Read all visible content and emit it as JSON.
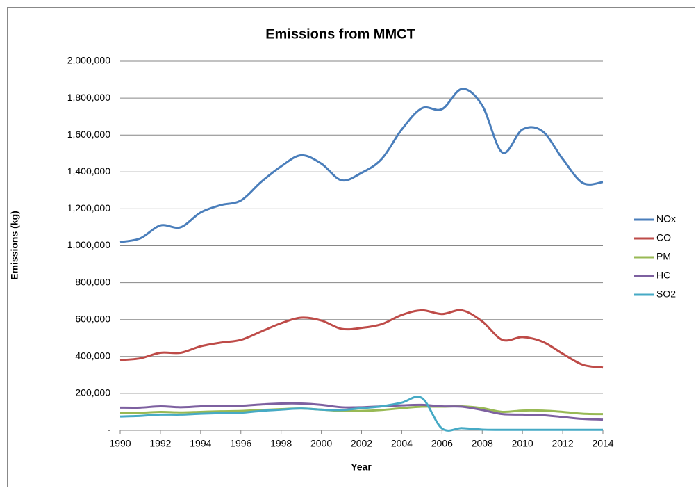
{
  "chart_data": {
    "type": "line",
    "title": "Emissions from MMCT",
    "x_label": "Year",
    "y_label": "Emissions (kg)",
    "x": [
      1990,
      1991,
      1992,
      1993,
      1994,
      1995,
      1996,
      1997,
      1998,
      1999,
      2000,
      2001,
      2002,
      2003,
      2004,
      2005,
      2006,
      2007,
      2008,
      2009,
      2010,
      2011,
      2012,
      2013,
      2014
    ],
    "series": [
      {
        "name": "NOx",
        "color": "#4a7ebb",
        "values": [
          1020000,
          1040000,
          1110000,
          1100000,
          1180000,
          1220000,
          1245000,
          1345000,
          1430000,
          1490000,
          1445000,
          1355000,
          1395000,
          1470000,
          1630000,
          1745000,
          1740000,
          1850000,
          1760000,
          1505000,
          1630000,
          1620000,
          1470000,
          1340000,
          1345000
        ]
      },
      {
        "name": "CO",
        "color": "#be4b48",
        "values": [
          380000,
          390000,
          420000,
          420000,
          455000,
          475000,
          490000,
          535000,
          580000,
          610000,
          595000,
          550000,
          555000,
          575000,
          625000,
          650000,
          630000,
          650000,
          590000,
          490000,
          505000,
          480000,
          415000,
          355000,
          340000
        ]
      },
      {
        "name": "PM",
        "color": "#98b954",
        "values": [
          95000,
          95000,
          100000,
          97000,
          100000,
          103000,
          105000,
          110000,
          115000,
          118000,
          112000,
          105000,
          105000,
          110000,
          120000,
          128000,
          128000,
          130000,
          120000,
          100000,
          107000,
          107000,
          100000,
          90000,
          88000
        ]
      },
      {
        "name": "HC",
        "color": "#7d60a0",
        "values": [
          123000,
          123000,
          130000,
          125000,
          130000,
          133000,
          133000,
          140000,
          145000,
          145000,
          138000,
          125000,
          125000,
          130000,
          135000,
          138000,
          130000,
          128000,
          110000,
          88000,
          85000,
          82000,
          72000,
          62000,
          58000
        ]
      },
      {
        "name": "SO2",
        "color": "#46aac5",
        "values": [
          75000,
          78000,
          85000,
          85000,
          90000,
          93000,
          95000,
          105000,
          112000,
          118000,
          112000,
          110000,
          120000,
          130000,
          150000,
          175000,
          10000,
          12000,
          4000,
          3000,
          3000,
          3000,
          3000,
          3000,
          3000
        ]
      }
    ],
    "xlim": [
      1990,
      2014
    ],
    "xticks": [
      1990,
      1992,
      1994,
      1996,
      1998,
      2000,
      2002,
      2004,
      2006,
      2008,
      2010,
      2012,
      2014
    ],
    "ylim": [
      0,
      2000000
    ],
    "yticks": [
      {
        "value": 0,
        "label": "-"
      },
      {
        "value": 200000,
        "label": "200,000"
      },
      {
        "value": 400000,
        "label": "400,000"
      },
      {
        "value": 600000,
        "label": "600,000"
      },
      {
        "value": 800000,
        "label": "800,000"
      },
      {
        "value": 1000000,
        "label": "1,000,000"
      },
      {
        "value": 1200000,
        "label": "1,200,000"
      },
      {
        "value": 1400000,
        "label": "1,400,000"
      },
      {
        "value": 1600000,
        "label": "1,600,000"
      },
      {
        "value": 1800000,
        "label": "1,800,000"
      },
      {
        "value": 2000000,
        "label": "2,000,000"
      }
    ],
    "grid": true,
    "legend": "right",
    "smooth": true
  }
}
